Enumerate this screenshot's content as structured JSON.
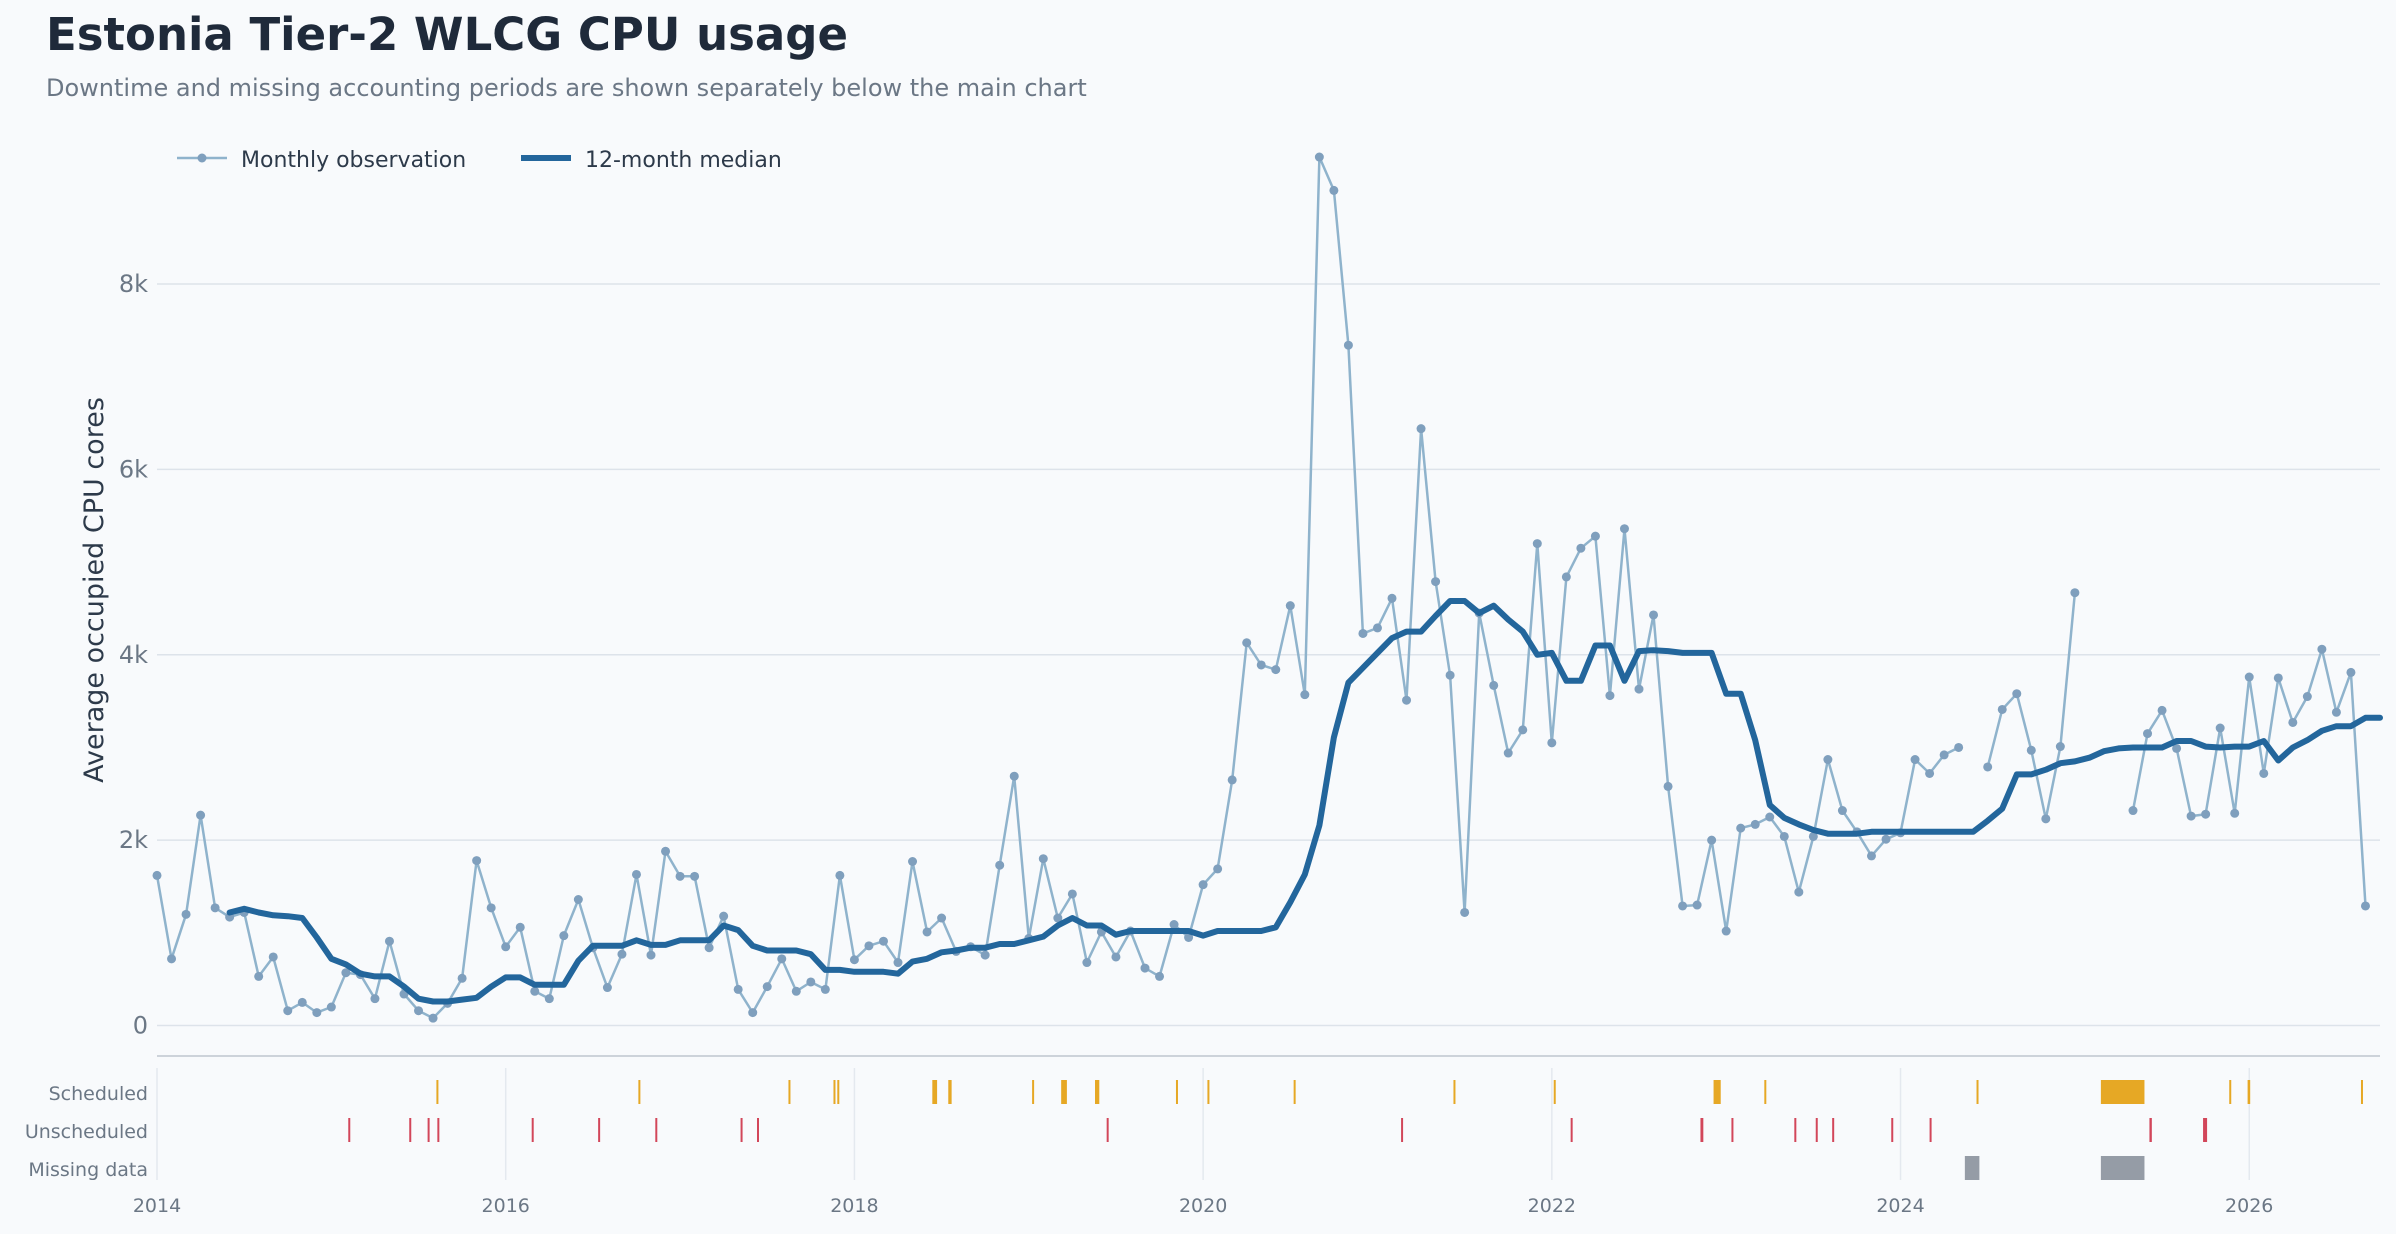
{
  "title": "Estonia Tier-2 WLCG CPU usage",
  "subtitle": "Downtime and missing accounting periods are shown separately below the main chart",
  "colors": {
    "observation": "#8fb3cc",
    "median": "#23669c",
    "scheduled": "#e6a825",
    "unscheduled": "#d2465a",
    "missing": "#959ca6",
    "grid": "#dde3ea",
    "text": "#2d3a4a",
    "muted": "#6b7785"
  },
  "chart_data": {
    "type": "line",
    "title": "Estonia Tier-2 WLCG CPU usage",
    "subtitle": "Downtime and missing accounting periods are shown separately below the main chart",
    "ylabel": "Average occupied CPU cores",
    "xlabel": "",
    "ylim": [
      -350,
      9500
    ],
    "xlim": [
      2014.0,
      2026.75
    ],
    "grid": true,
    "legend_placement": "top-left",
    "y_ticks": [
      0,
      2000,
      4000,
      6000,
      8000
    ],
    "y_tick_labels": [
      "0",
      "2k",
      "4k",
      "6k",
      "8k"
    ],
    "x_ticks": [
      2014,
      2016,
      2018,
      2020,
      2022,
      2024,
      2026
    ],
    "x_tick_labels": [
      "2014",
      "2016",
      "2018",
      "2020",
      "2022",
      "2024",
      "2026"
    ],
    "series": [
      {
        "name": "Monthly observation",
        "start": "2014-01",
        "interval": "month",
        "values": [
          1620,
          720,
          1200,
          2270,
          1270,
          1170,
          1220,
          530,
          740,
          160,
          250,
          140,
          200,
          570,
          550,
          290,
          910,
          340,
          160,
          80,
          240,
          510,
          1780,
          1270,
          850,
          1060,
          370,
          290,
          970,
          1360,
          840,
          410,
          770,
          1630,
          760,
          1880,
          1610,
          1610,
          840,
          1180,
          390,
          140,
          420,
          720,
          370,
          470,
          390,
          1620,
          710,
          860,
          910,
          680,
          1770,
          1010,
          1160,
          800,
          850,
          760,
          1730,
          2690,
          940,
          1800,
          1160,
          1420,
          680,
          1010,
          740,
          1020,
          620,
          530,
          1090,
          950,
          1520,
          1690,
          2650,
          4130,
          3890,
          3840,
          4530,
          3570,
          9370,
          9010,
          7340,
          4230,
          4290,
          4610,
          3510,
          6440,
          4790,
          3780,
          1220,
          4450,
          3670,
          2940,
          3190,
          5200,
          3050,
          4840,
          5150,
          5280,
          3560,
          5360,
          3630,
          4430,
          2580,
          1290,
          1300,
          2000,
          1020,
          2130,
          2170,
          2250,
          2040,
          1440,
          2040,
          2870,
          2320,
          2090,
          1830,
          2010,
          2080,
          2870,
          2720,
          2920,
          3000,
          null,
          2790,
          3410,
          3580,
          2970,
          2230,
          3010,
          4670,
          null,
          null,
          null,
          2320,
          3150,
          3400,
          2990,
          2260,
          2280,
          3210,
          2290,
          3760,
          2720,
          3750,
          3270,
          3550,
          4060,
          3380,
          3810,
          1290
        ]
      },
      {
        "name": "12-month median",
        "start": "2014-06",
        "interval": "month",
        "values": [
          1220,
          1260,
          1220,
          1190,
          1180,
          1160,
          950,
          720,
          660,
          560,
          530,
          530,
          420,
          290,
          260,
          260,
          280,
          300,
          420,
          520,
          520,
          440,
          440,
          440,
          700,
          860,
          860,
          860,
          920,
          870,
          870,
          920,
          920,
          920,
          1080,
          1030,
          860,
          810,
          810,
          810,
          770,
          600,
          600,
          580,
          580,
          580,
          560,
          690,
          720,
          790,
          810,
          840,
          840,
          880,
          880,
          920,
          960,
          1080,
          1160,
          1080,
          1080,
          980,
          1020,
          1020,
          1020,
          1020,
          1020,
          970,
          1020,
          1020,
          1020,
          1020,
          1060,
          1330,
          1630,
          2160,
          3110,
          3700,
          3860,
          4020,
          4180,
          4250,
          4250,
          4420,
          4580,
          4580,
          4450,
          4530,
          4380,
          4250,
          4000,
          4020,
          3720,
          3720,
          4100,
          4100,
          3720,
          4040,
          4050,
          4040,
          4020,
          4020,
          4020,
          3580,
          3580,
          3080,
          2380,
          2240,
          2170,
          2110,
          2070,
          2070,
          2070,
          2090,
          2090,
          2090,
          2090,
          2090,
          2090,
          2090,
          2090,
          2210,
          2340,
          2710,
          2710,
          2760,
          2830,
          2850,
          2890,
          2960,
          2990,
          3000,
          3000,
          3000,
          3070,
          3070,
          3010,
          3000,
          3010,
          3010,
          3070,
          2860,
          3000,
          3080,
          3180,
          3230,
          3230,
          3320,
          3320
        ]
      }
    ],
    "downtime_rows": [
      "Scheduled",
      "Unscheduled",
      "Missing data"
    ],
    "downtime": {
      "scheduled": [
        {
          "start": "2015-08-08",
          "end": "2015-08-10"
        },
        {
          "start": "2016-10-05",
          "end": "2016-10-07"
        },
        {
          "start": "2017-08-15",
          "end": "2017-08-17"
        },
        {
          "start": "2017-11-18",
          "end": "2017-11-21"
        },
        {
          "start": "2017-11-26",
          "end": "2017-11-30"
        },
        {
          "start": "2018-06-12",
          "end": "2018-06-22"
        },
        {
          "start": "2018-07-15",
          "end": "2018-07-22"
        },
        {
          "start": "2019-01-08",
          "end": "2019-01-10"
        },
        {
          "start": "2019-03-08",
          "end": "2019-03-20"
        },
        {
          "start": "2019-05-18",
          "end": "2019-05-27"
        },
        {
          "start": "2019-11-05",
          "end": "2019-11-07"
        },
        {
          "start": "2020-01-10",
          "end": "2020-01-12"
        },
        {
          "start": "2020-07-08",
          "end": "2020-07-10"
        },
        {
          "start": "2021-06-08",
          "end": "2021-06-10"
        },
        {
          "start": "2022-01-05",
          "end": "2022-01-07"
        },
        {
          "start": "2022-12-05",
          "end": "2022-12-20"
        },
        {
          "start": "2023-03-20",
          "end": "2023-03-22"
        },
        {
          "start": "2024-06-08",
          "end": "2024-06-12"
        },
        {
          "start": "2025-02-25",
          "end": "2025-05-25"
        },
        {
          "start": "2025-11-20",
          "end": "2025-11-22"
        },
        {
          "start": "2025-12-28",
          "end": "2026-01-03"
        },
        {
          "start": "2026-08-22",
          "end": "2026-08-26"
        }
      ],
      "unscheduled": [
        {
          "start": "2015-02-06",
          "end": "2015-02-09"
        },
        {
          "start": "2015-06-12",
          "end": "2015-06-14"
        },
        {
          "start": "2015-07-20",
          "end": "2015-07-22"
        },
        {
          "start": "2015-08-10",
          "end": "2015-08-12"
        },
        {
          "start": "2016-02-25",
          "end": "2016-02-27"
        },
        {
          "start": "2016-07-12",
          "end": "2016-07-14"
        },
        {
          "start": "2016-11-10",
          "end": "2016-11-12"
        },
        {
          "start": "2017-05-06",
          "end": "2017-05-08"
        },
        {
          "start": "2017-06-10",
          "end": "2017-06-12"
        },
        {
          "start": "2019-06-12",
          "end": "2019-06-16"
        },
        {
          "start": "2021-02-20",
          "end": "2021-02-22"
        },
        {
          "start": "2022-02-10",
          "end": "2022-02-12"
        },
        {
          "start": "2022-11-08",
          "end": "2022-11-14"
        },
        {
          "start": "2023-01-12",
          "end": "2023-01-16"
        },
        {
          "start": "2023-05-22",
          "end": "2023-05-25"
        },
        {
          "start": "2023-07-06",
          "end": "2023-07-09"
        },
        {
          "start": "2023-08-10",
          "end": "2023-08-13"
        },
        {
          "start": "2023-12-12",
          "end": "2023-12-15"
        },
        {
          "start": "2024-03-01",
          "end": "2024-03-04"
        },
        {
          "start": "2025-06-05",
          "end": "2025-06-10"
        },
        {
          "start": "2025-09-26",
          "end": "2025-10-04"
        }
      ],
      "missing": [
        {
          "start": "2024-05-14",
          "end": "2024-06-14"
        },
        {
          "start": "2025-02-25",
          "end": "2025-05-25"
        }
      ]
    }
  },
  "legend": {
    "observation_label": "Monthly observation",
    "median_label": "12-month median"
  }
}
